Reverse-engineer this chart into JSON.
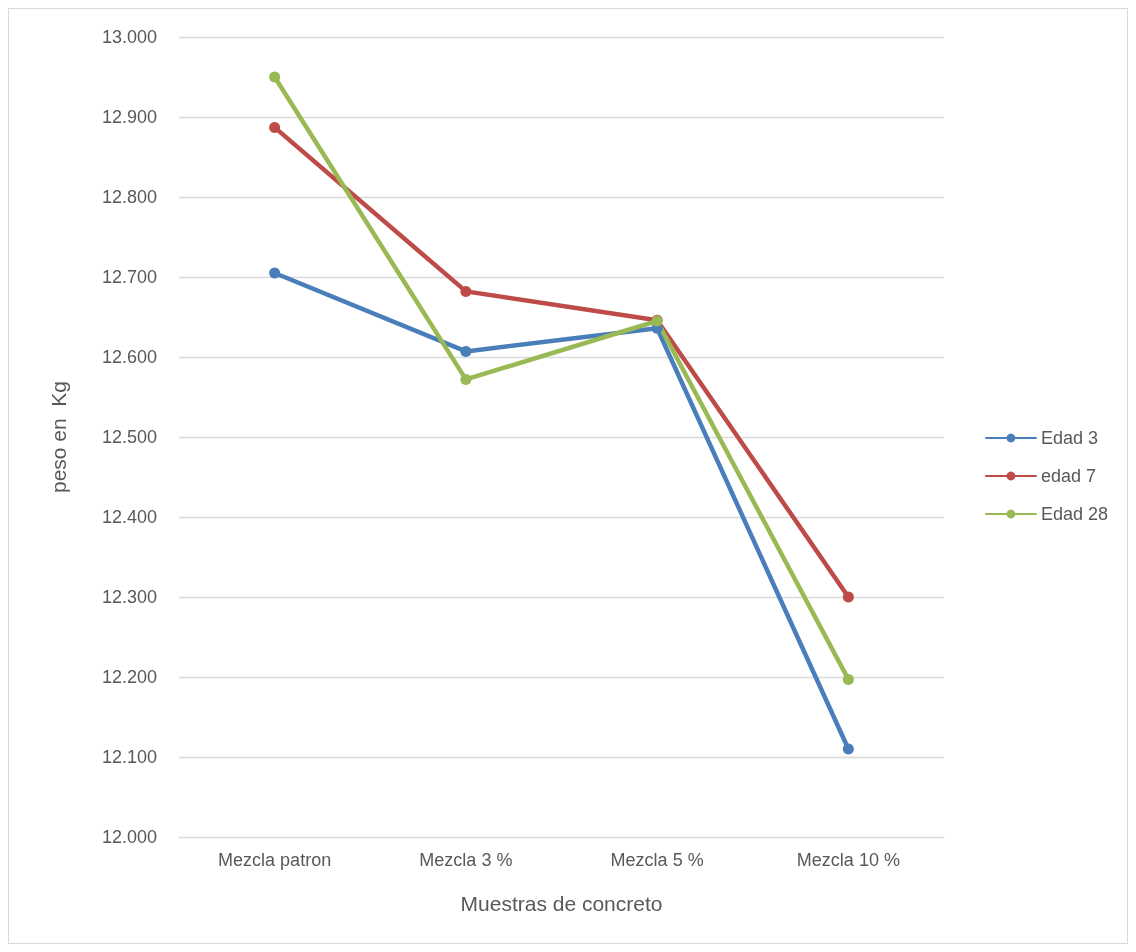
{
  "chart_data": {
    "type": "line",
    "xlabel": "Muestras de concreto",
    "ylabel": "peso en  Kg",
    "categories": [
      "Mezcla patron",
      "Mezcla 3 %",
      "Mezcla 5 %",
      "Mezcla 10 %"
    ],
    "series": [
      {
        "name": "Edad 3",
        "color": "#4a7ebb",
        "values": [
          12.705,
          12.607,
          12.636,
          12.11
        ]
      },
      {
        "name": "edad 7",
        "color": "#be4b48",
        "values": [
          12.887,
          12.682,
          12.646,
          12.3
        ]
      },
      {
        "name": "Edad 28",
        "color": "#98b954",
        "values": [
          12.95,
          12.572,
          12.645,
          12.197
        ]
      }
    ],
    "ylim": [
      12,
      13
    ],
    "yticks": [
      {
        "value": 12,
        "label": "12.000"
      },
      {
        "value": 12.1,
        "label": "12.100"
      },
      {
        "value": 12.2,
        "label": "12.200"
      },
      {
        "value": 12.3,
        "label": "12.300"
      },
      {
        "value": 12.4,
        "label": "12.400"
      },
      {
        "value": 12.5,
        "label": "12.500"
      },
      {
        "value": 12.6,
        "label": "12.600"
      },
      {
        "value": 12.7,
        "label": "12.700"
      },
      {
        "value": 12.8,
        "label": "12.800"
      },
      {
        "value": 12.9,
        "label": "12.900"
      },
      {
        "value": 13,
        "label": "13.000"
      }
    ],
    "grid": "y",
    "legend": "right",
    "marker": "circle",
    "line_style": "solid"
  }
}
